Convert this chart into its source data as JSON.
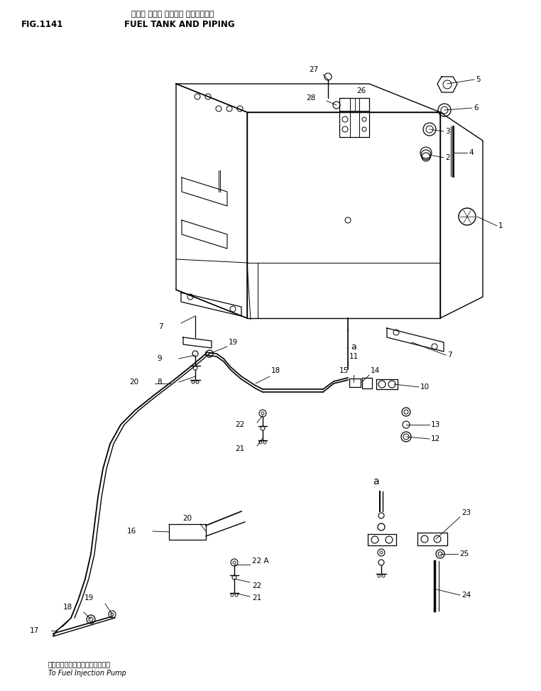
{
  "title_japanese": "フェル タンク オヤビー パイピングー",
  "title_english": "FUEL TANK AND PIPING",
  "fig_number": "FIG.1141",
  "bottom_japanese": "フェルインジェクションポンプへ",
  "bottom_english": "To Fuel Injection Pump",
  "bg_color": "#ffffff",
  "line_color": "#000000"
}
